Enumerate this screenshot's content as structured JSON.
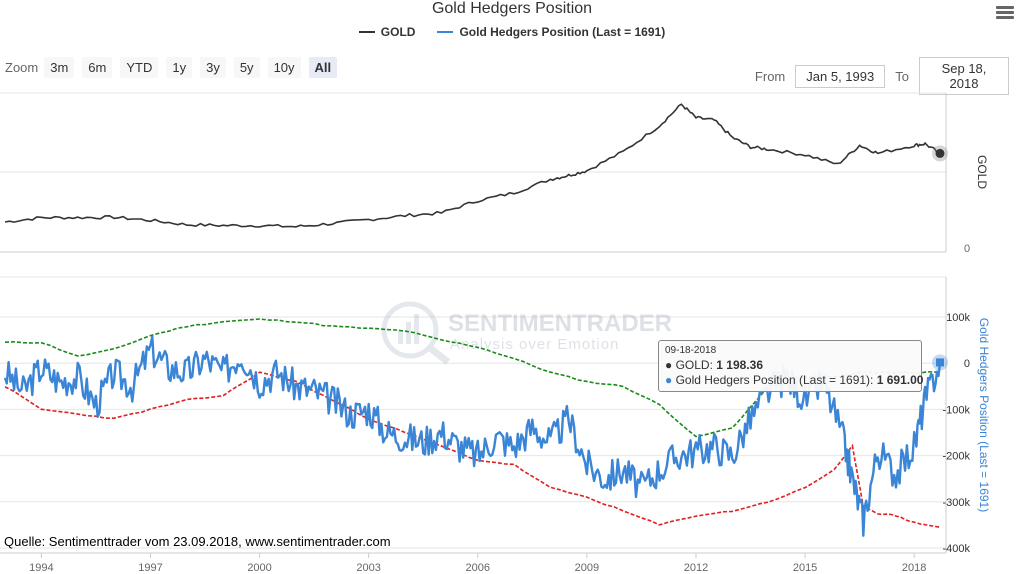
{
  "title": "Gold Hedgers Position",
  "legend": {
    "gold": "GOLD",
    "hedgers": "Gold Hedgers Position (Last = 1691)"
  },
  "zoom": {
    "label": "Zoom",
    "buttons": [
      "3m",
      "6m",
      "YTD",
      "1y",
      "3y",
      "5y",
      "10y",
      "All"
    ],
    "active": "All"
  },
  "range": {
    "from_label": "From",
    "from_value": "Jan 5, 1993",
    "to_label": "To",
    "to_value": "Sep 18, 2018"
  },
  "tooltip": {
    "date": "09-18-2018",
    "gold_label": "GOLD:",
    "gold_value": "1 198.36",
    "hedgers_label": "Gold Hedgers Position (Last = 1691):",
    "hedgers_value": "1 691.00"
  },
  "watermark": {
    "name": "SENTIMENTRADER",
    "tagline": "Analysis over Emotion"
  },
  "source": "Quelle: Sentimenttrader vom 23.09.2018, www.sentimentrader.com",
  "colors": {
    "gold": "#333333",
    "hedgers": "#3a85d6",
    "upper_band": "#1a8a1a",
    "lower_band": "#e02020"
  },
  "chart_data": [
    {
      "type": "line",
      "name": "GOLD",
      "yaxis_title": "GOLD",
      "y_ticks": [
        0
      ],
      "x": [
        1993.0,
        1994.0,
        1995.0,
        1996.0,
        1997.0,
        1998.0,
        1999.0,
        2000.0,
        2001.0,
        2002.0,
        2003.0,
        2004.0,
        2005.0,
        2006.0,
        2007.0,
        2008.0,
        2008.5,
        2009.0,
        2010.0,
        2011.0,
        2011.6,
        2012.0,
        2012.5,
        2013.0,
        2013.5,
        2014.0,
        2015.0,
        2015.9,
        2016.5,
        2017.0,
        2018.0,
        2018.3,
        2018.71
      ],
      "y": [
        330,
        385,
        385,
        390,
        350,
        295,
        285,
        285,
        270,
        310,
        360,
        410,
        445,
        600,
        700,
        870,
        920,
        980,
        1220,
        1550,
        1820,
        1650,
        1620,
        1400,
        1280,
        1250,
        1180,
        1060,
        1300,
        1200,
        1300,
        1320,
        1198
      ]
    },
    {
      "type": "line",
      "name": "Gold Hedgers Position (Last = 1691)",
      "yaxis_title": "Gold Hedgers Position (Last = 1691)",
      "y_ticks": [
        "100k",
        "0",
        "-100k",
        "-200k",
        "-300k",
        "-400k"
      ],
      "ylim": [
        -400000,
        100000
      ],
      "x_ticks": [
        "1994",
        "1997",
        "2000",
        "2003",
        "2006",
        "2009",
        "2012",
        "2015",
        "2018"
      ],
      "x": [
        1993.0,
        1993.5,
        1994.0,
        1994.5,
        1995.0,
        1995.5,
        1996.0,
        1996.5,
        1997.0,
        1997.5,
        1998.0,
        1998.5,
        1999.0,
        1999.5,
        2000.0,
        2000.5,
        2001.0,
        2001.5,
        2002.0,
        2002.5,
        2003.0,
        2003.5,
        2004.0,
        2004.5,
        2005.0,
        2005.5,
        2006.0,
        2006.5,
        2007.0,
        2007.5,
        2008.0,
        2008.5,
        2009.0,
        2009.5,
        2010.0,
        2010.5,
        2011.0,
        2011.5,
        2012.0,
        2012.5,
        2013.0,
        2013.5,
        2014.0,
        2014.5,
        2015.0,
        2015.5,
        2016.0,
        2016.3,
        2016.6,
        2017.0,
        2017.5,
        2018.0,
        2018.3,
        2018.71
      ],
      "y": [
        -20000,
        -60000,
        -10000,
        -40000,
        -30000,
        -90000,
        -20000,
        -50000,
        30000,
        -10000,
        -20000,
        10000,
        -20000,
        20000,
        -40000,
        -20000,
        -50000,
        -60000,
        -80000,
        -110000,
        -100000,
        -150000,
        -160000,
        -170000,
        -150000,
        -180000,
        -200000,
        -160000,
        -180000,
        -140000,
        -170000,
        -120000,
        -220000,
        -250000,
        -230000,
        -270000,
        -230000,
        -200000,
        -190000,
        -180000,
        -200000,
        -120000,
        -60000,
        -30000,
        -80000,
        -40000,
        -150000,
        -250000,
        -340000,
        -190000,
        -240000,
        -180000,
        -80000,
        1691
      ]
    },
    {
      "type": "line",
      "name": "",
      "x": [
        1993.0,
        1994.0,
        1995.0,
        1996.0,
        1997.0,
        1998.0,
        1999.0,
        2000.0,
        2001.0,
        2002.0,
        2003.0,
        2004.0,
        2005.0,
        2006.0,
        2007.0,
        2008.0,
        2009.0,
        2010.0,
        2011.0,
        2012.0,
        2013.0,
        2014.0,
        2015.0,
        2016.0,
        2016.5,
        2017.0,
        2017.5,
        2018.0,
        2018.71
      ],
      "y": [
        45000,
        45000,
        15000,
        30000,
        60000,
        80000,
        90000,
        95000,
        90000,
        80000,
        75000,
        70000,
        50000,
        35000,
        10000,
        -20000,
        -40000,
        -50000,
        -90000,
        -160000,
        -140000,
        -50000,
        -30000,
        -30000,
        -20000,
        -20000,
        -20000,
        -20000,
        -20000
      ]
    },
    {
      "type": "line",
      "name": "",
      "x": [
        1993.0,
        1994.0,
        1995.0,
        1996.0,
        1997.0,
        1998.0,
        1999.0,
        2000.0,
        2001.0,
        2002.0,
        2003.0,
        2004.0,
        2005.0,
        2006.0,
        2007.0,
        2008.0,
        2009.0,
        2010.0,
        2011.0,
        2012.0,
        2013.0,
        2014.0,
        2015.0,
        2015.8,
        2016.3,
        2016.6,
        2017.0,
        2017.5,
        2018.0,
        2018.71
      ],
      "y": [
        -50000,
        -100000,
        -110000,
        -120000,
        -100000,
        -80000,
        -70000,
        -20000,
        -40000,
        -80000,
        -120000,
        -150000,
        -180000,
        -210000,
        -220000,
        -270000,
        -290000,
        -320000,
        -350000,
        -330000,
        -320000,
        -300000,
        -270000,
        -230000,
        -180000,
        -310000,
        -325000,
        -330000,
        -345000,
        -355000
      ]
    }
  ]
}
